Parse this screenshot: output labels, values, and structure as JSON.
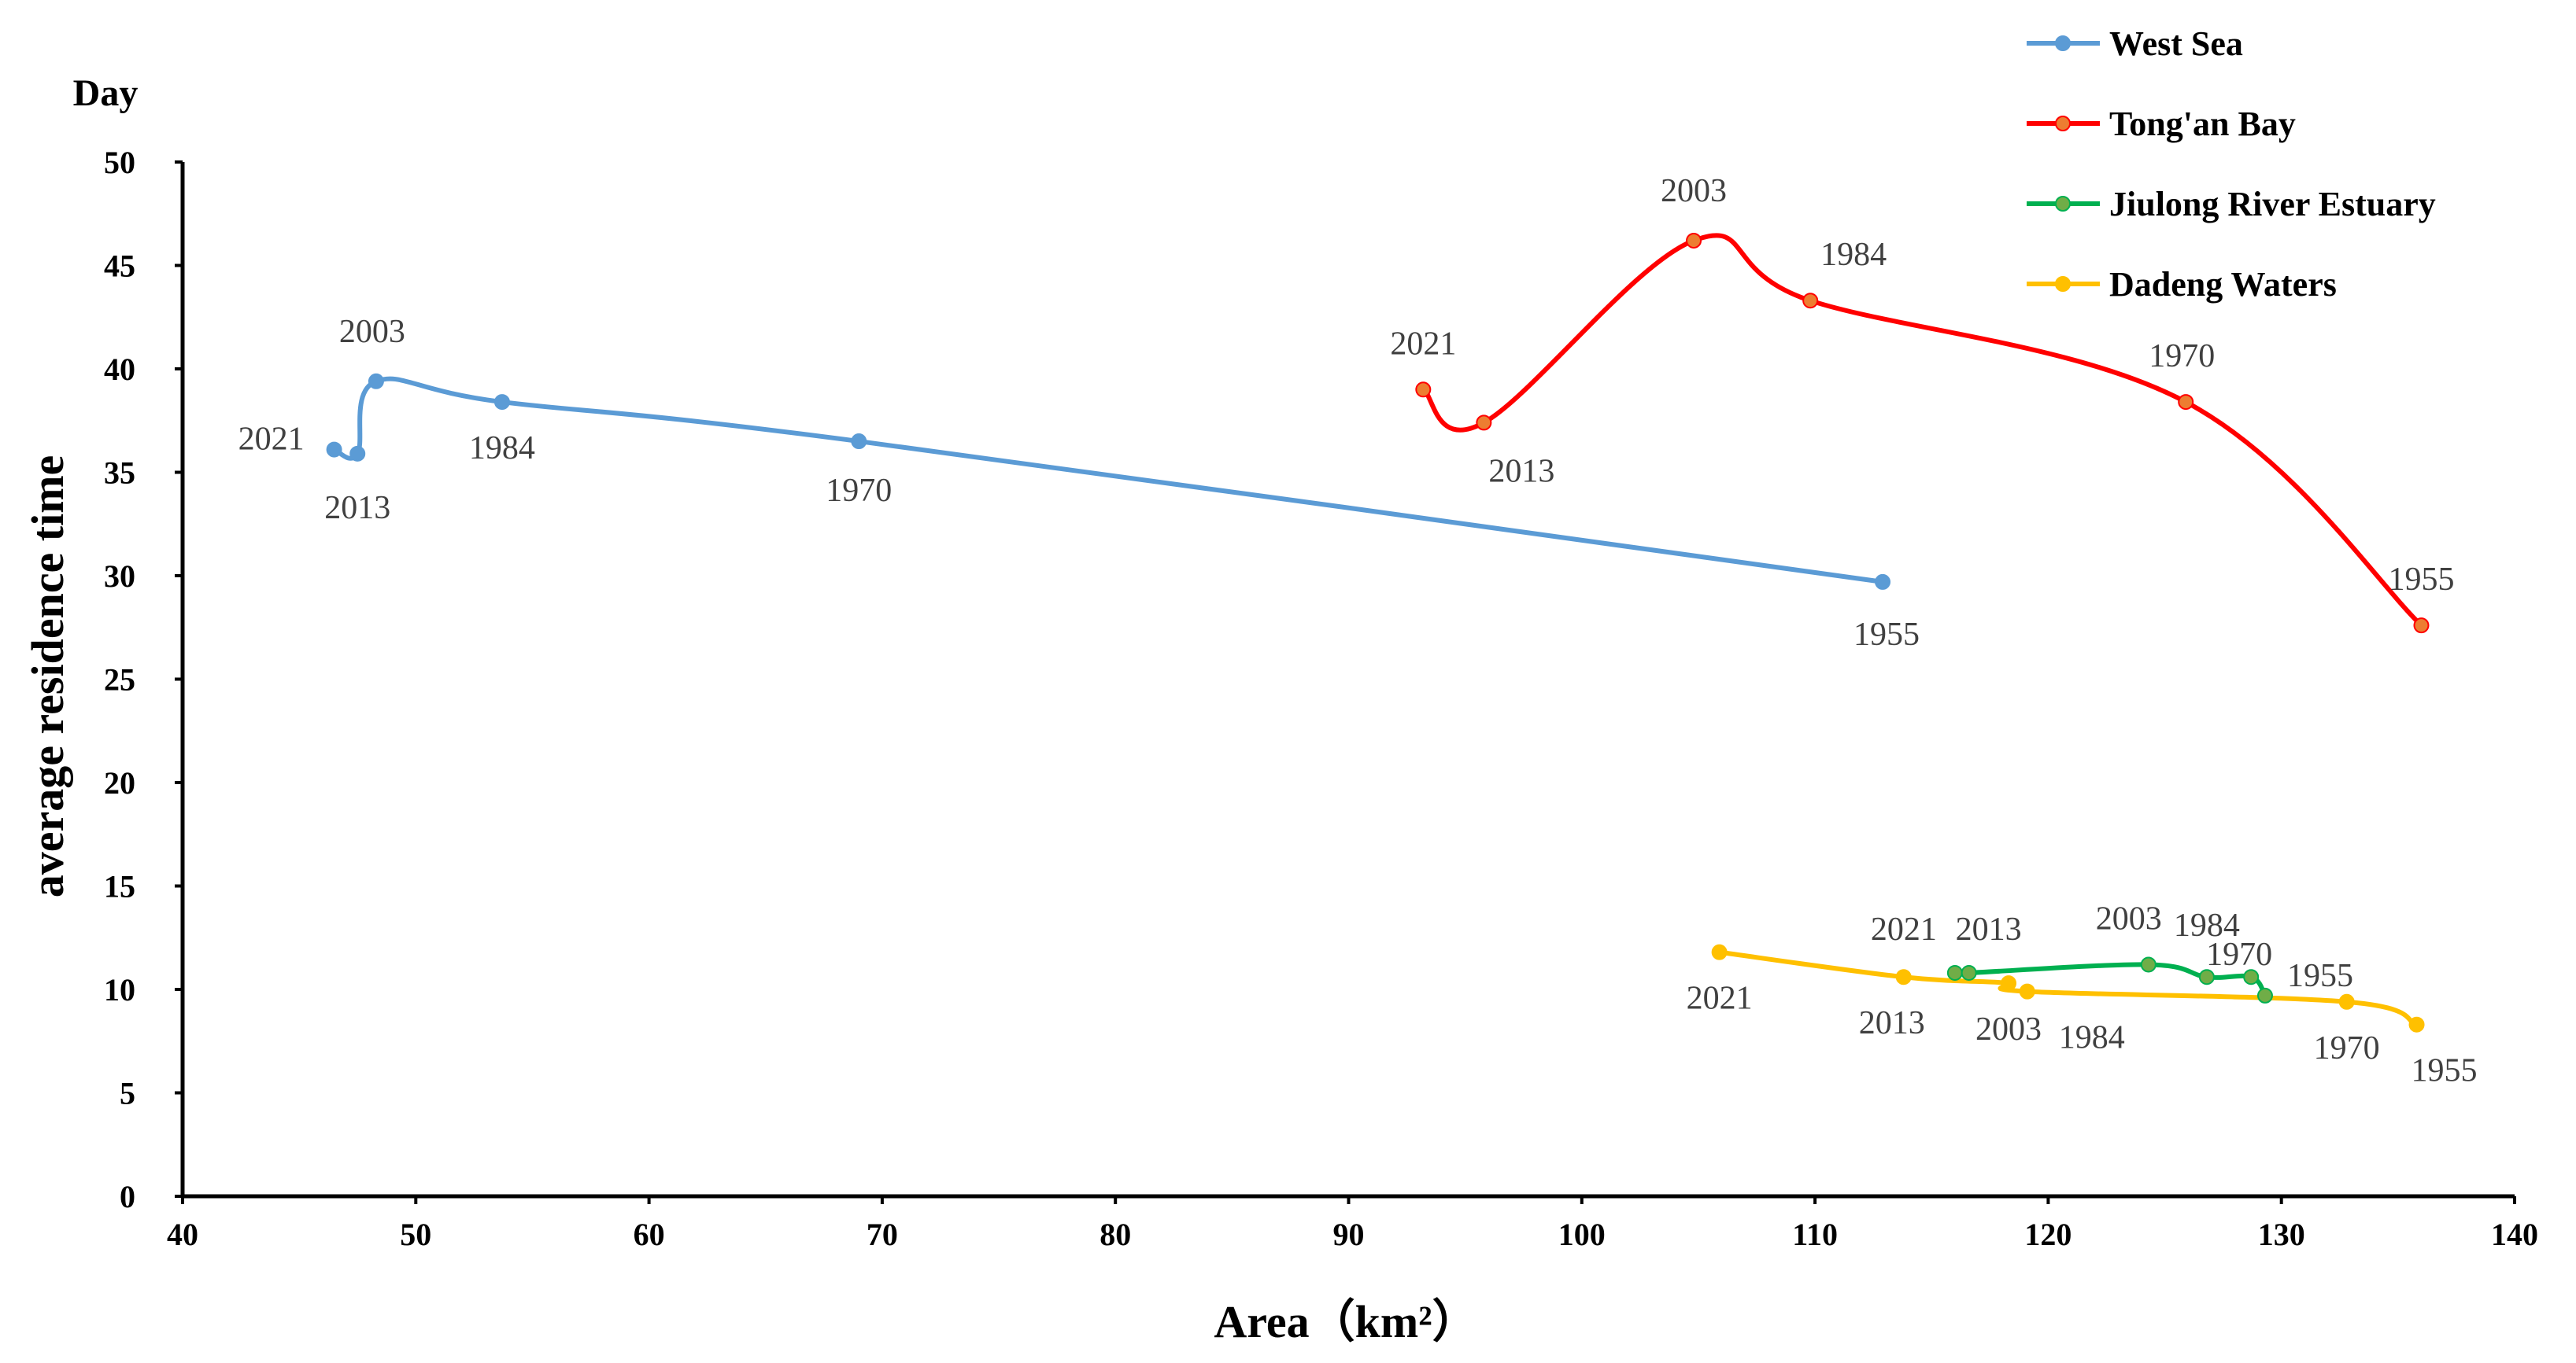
{
  "chart_data": {
    "type": "line",
    "title": "",
    "xlabel": "Area（km²）",
    "ylabel": "average residence time",
    "yunit": "Day",
    "xlim": [
      40,
      140
    ],
    "ylim": [
      0,
      50
    ],
    "xticks": [
      40,
      50,
      60,
      70,
      80,
      90,
      100,
      110,
      120,
      130,
      140
    ],
    "yticks": [
      0,
      5,
      10,
      15,
      20,
      25,
      30,
      35,
      40,
      45,
      50
    ],
    "grid": false,
    "legend_position": "top-right",
    "series": [
      {
        "name": "West Sea",
        "color": "#5b9bd5",
        "points": [
          {
            "x": 46.5,
            "y": 36.1,
            "label": "2021"
          },
          {
            "x": 47.5,
            "y": 35.9,
            "label": "2013"
          },
          {
            "x": 48.3,
            "y": 39.4,
            "label": "2003"
          },
          {
            "x": 53.7,
            "y": 38.4,
            "label": "1984"
          },
          {
            "x": 69.0,
            "y": 36.5,
            "label": "1970"
          },
          {
            "x": 112.9,
            "y": 29.7,
            "label": "1955"
          }
        ]
      },
      {
        "name": "Tong'an Bay",
        "color": "#ff0000",
        "marker_color": "#ed7d31",
        "points": [
          {
            "x": 93.2,
            "y": 39.0,
            "label": "2021"
          },
          {
            "x": 95.8,
            "y": 37.4,
            "label": "2013"
          },
          {
            "x": 104.8,
            "y": 46.2,
            "label": "2003"
          },
          {
            "x": 109.8,
            "y": 43.3,
            "label": "1984"
          },
          {
            "x": 125.9,
            "y": 38.4,
            "label": "1970"
          },
          {
            "x": 136.0,
            "y": 27.6,
            "label": "1955"
          }
        ]
      },
      {
        "name": "Jiulong River Estuary",
        "color": "#00b050",
        "marker_color": "#70ad47",
        "points": [
          {
            "x": 116.0,
            "y": 10.8,
            "label": "2021"
          },
          {
            "x": 116.6,
            "y": 10.8,
            "label": "2013"
          },
          {
            "x": 124.3,
            "y": 11.2,
            "label": "2003"
          },
          {
            "x": 126.8,
            "y": 10.6,
            "label": "1984"
          },
          {
            "x": 128.7,
            "y": 10.6,
            "label": "1970"
          },
          {
            "x": 129.3,
            "y": 9.7,
            "label": "1955"
          }
        ]
      },
      {
        "name": "Dadeng Waters",
        "color": "#ffc000",
        "points": [
          {
            "x": 105.9,
            "y": 11.8,
            "label": "2021"
          },
          {
            "x": 113.8,
            "y": 10.6,
            "label": "2013"
          },
          {
            "x": 118.3,
            "y": 10.3,
            "label": "2003"
          },
          {
            "x": 119.1,
            "y": 9.9,
            "label": "1984"
          },
          {
            "x": 132.8,
            "y": 9.4,
            "label": "1970"
          },
          {
            "x": 135.8,
            "y": 8.3,
            "label": "1955"
          }
        ]
      }
    ]
  }
}
